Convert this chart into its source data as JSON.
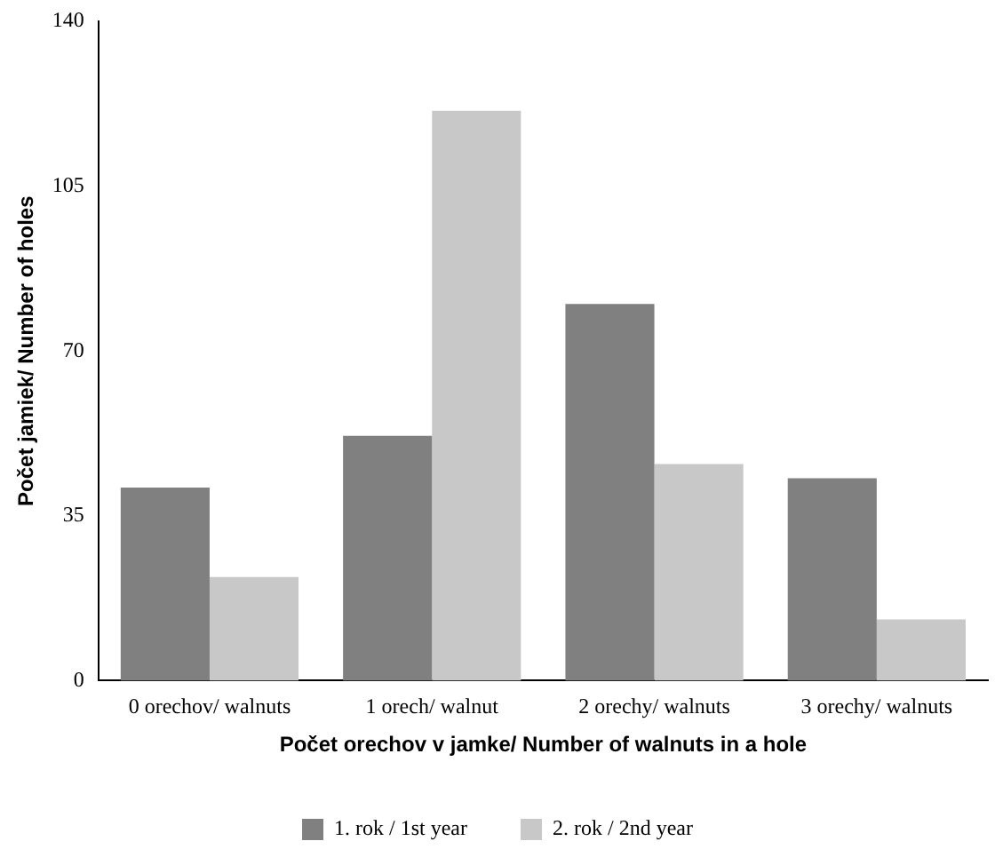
{
  "chart_data": {
    "type": "bar",
    "xlabel": "Počet orechov v jamke/ Number of walnuts in a hole",
    "ylabel": "Počet jamiek/ Number of holes",
    "categories": [
      "0 orechov/ walnuts",
      "1 orech/ walnut",
      "2 orechy/ walnuts",
      "3 orechy/ walnuts"
    ],
    "series": [
      {
        "name": "1. rok / 1st year",
        "color": "#808080",
        "values": [
          41,
          52,
          80,
          43
        ]
      },
      {
        "name": "2. rok / 2nd year",
        "color": "#c8c8c8",
        "values": [
          22,
          121,
          46,
          13
        ]
      }
    ],
    "ylim": [
      0,
      140
    ],
    "yticks": [
      0,
      35,
      70,
      105,
      140
    ],
    "grid": false,
    "legend": "bottom"
  }
}
